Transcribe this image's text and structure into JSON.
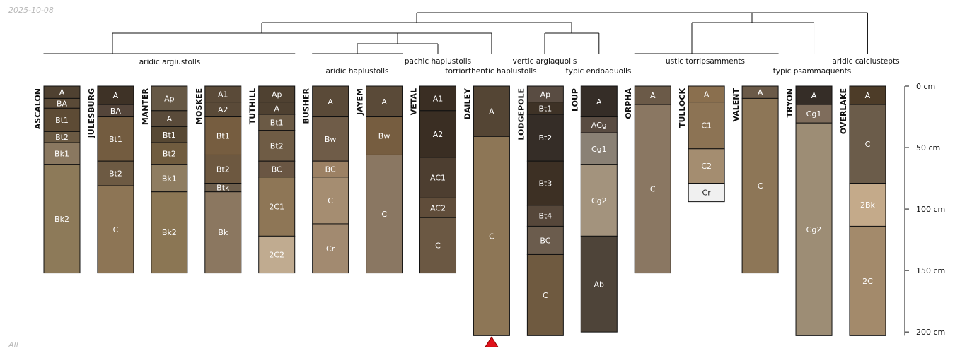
{
  "header": {
    "date": "2025-10-08"
  },
  "footer": {
    "label": "All"
  },
  "chart_data": {
    "type": "soil-profile-sketch",
    "depth_unit": "cm",
    "depth_ticks": [
      0,
      50,
      100,
      150,
      200
    ],
    "depth_tick_labels": [
      "0 cm",
      "50 cm",
      "100 cm",
      "150 cm",
      "200 cm"
    ],
    "depth_max": 203,
    "classes": [
      {
        "label": "aridic argiustolls",
        "members": [
          "ASCALON",
          "JULESBURG",
          "MANTER",
          "MOSKEE",
          "TUTHILL"
        ]
      },
      {
        "label": "aridic haplustolls",
        "members": [
          "BUSHER",
          "JAYEM"
        ]
      },
      {
        "label": "pachic haplustolls",
        "members": [
          "VETAL"
        ]
      },
      {
        "label": "torriorthentic haplustolls",
        "members": [
          "DAILEY"
        ]
      },
      {
        "label": "vertic argiaquolls",
        "members": [
          "LODGEPOLE"
        ]
      },
      {
        "label": "typic endoaquolls",
        "members": [
          "LOUP"
        ]
      },
      {
        "label": "ustic torripsamments",
        "members": [
          "ORPHA",
          "TULLOCK",
          "VALENT"
        ]
      },
      {
        "label": "typic psammaquents",
        "members": [
          "TRYON"
        ]
      },
      {
        "label": "aridic calciustepts",
        "members": [
          "OVERLAKE"
        ]
      }
    ],
    "truncated_profiles": [
      "DAILEY"
    ],
    "profiles": [
      {
        "name": "ASCALON",
        "horizons": [
          {
            "name": "A",
            "top": 0,
            "bottom": 10,
            "color": "#4f4131"
          },
          {
            "name": "BA",
            "top": 10,
            "bottom": 18,
            "color": "#5a4a37"
          },
          {
            "name": "Bt1",
            "top": 18,
            "bottom": 37,
            "color": "#5d4b35"
          },
          {
            "name": "Bt2",
            "top": 37,
            "bottom": 46,
            "color": "#6b5a43"
          },
          {
            "name": "Bk1",
            "top": 46,
            "bottom": 64,
            "color": "#8a7860"
          },
          {
            "name": "Bk2",
            "top": 64,
            "bottom": 152,
            "color": "#8d7a59"
          }
        ]
      },
      {
        "name": "JULESBURG",
        "horizons": [
          {
            "name": "A",
            "top": 0,
            "bottom": 15,
            "color": "#3e3226"
          },
          {
            "name": "BA",
            "top": 15,
            "bottom": 25,
            "color": "#54453a"
          },
          {
            "name": "Bt1",
            "top": 25,
            "bottom": 61,
            "color": "#735c40"
          },
          {
            "name": "Bt2",
            "top": 61,
            "bottom": 81,
            "color": "#6d5a43"
          },
          {
            "name": "C",
            "top": 81,
            "bottom": 152,
            "color": "#8d7555"
          }
        ]
      },
      {
        "name": "MANTER",
        "horizons": [
          {
            "name": "Ap",
            "top": 0,
            "bottom": 20,
            "color": "#665845"
          },
          {
            "name": "A",
            "top": 20,
            "bottom": 33,
            "color": "#5a4b3a"
          },
          {
            "name": "Bt1",
            "top": 33,
            "bottom": 46,
            "color": "#574833"
          },
          {
            "name": "Bt2",
            "top": 46,
            "bottom": 64,
            "color": "#705c3f"
          },
          {
            "name": "Bk1",
            "top": 64,
            "bottom": 86,
            "color": "#8f7d61"
          },
          {
            "name": "Bk2",
            "top": 86,
            "bottom": 152,
            "color": "#8b7654"
          }
        ]
      },
      {
        "name": "MOSKEE",
        "horizons": [
          {
            "name": "A1",
            "top": 0,
            "bottom": 13,
            "color": "#5a4a38"
          },
          {
            "name": "A2",
            "top": 13,
            "bottom": 25,
            "color": "#5a4a38"
          },
          {
            "name": "Bt1",
            "top": 25,
            "bottom": 56,
            "color": "#765d40"
          },
          {
            "name": "Bt2",
            "top": 56,
            "bottom": 79,
            "color": "#6d5840"
          },
          {
            "name": "Btk",
            "top": 79,
            "bottom": 86,
            "color": "#6d5e4c"
          },
          {
            "name": "Bk",
            "top": 86,
            "bottom": 152,
            "color": "#8b7760"
          }
        ]
      },
      {
        "name": "TUTHILL",
        "horizons": [
          {
            "name": "Ap",
            "top": 0,
            "bottom": 13,
            "color": "#4f4131"
          },
          {
            "name": "A",
            "top": 13,
            "bottom": 23,
            "color": "#4f4131"
          },
          {
            "name": "Bt1",
            "top": 23,
            "bottom": 36,
            "color": "#6b5a45"
          },
          {
            "name": "Bt2",
            "top": 36,
            "bottom": 61,
            "color": "#6f5c45"
          },
          {
            "name": "BC",
            "top": 61,
            "bottom": 74,
            "color": "#6a5643"
          },
          {
            "name": "2C1",
            "top": 74,
            "bottom": 122,
            "color": "#8e7656"
          },
          {
            "name": "2C2",
            "top": 122,
            "bottom": 152,
            "color": "#c0ab90"
          }
        ]
      },
      {
        "name": "BUSHER",
        "horizons": [
          {
            "name": "A",
            "top": 0,
            "bottom": 25,
            "color": "#5a4a38"
          },
          {
            "name": "Bw",
            "top": 25,
            "bottom": 61,
            "color": "#6f5c48"
          },
          {
            "name": "BC",
            "top": 61,
            "bottom": 74,
            "color": "#9c8164"
          },
          {
            "name": "C",
            "top": 74,
            "bottom": 112,
            "color": "#a58d71"
          },
          {
            "name": "Cr",
            "top": 112,
            "bottom": 152,
            "color": "#a28a70"
          }
        ]
      },
      {
        "name": "JAYEM",
        "horizons": [
          {
            "name": "A",
            "top": 0,
            "bottom": 25,
            "color": "#5a4a38"
          },
          {
            "name": "Bw",
            "top": 25,
            "bottom": 56,
            "color": "#765d40"
          },
          {
            "name": "C",
            "top": 56,
            "bottom": 152,
            "color": "#8a7762"
          }
        ]
      },
      {
        "name": "VETAL",
        "horizons": [
          {
            "name": "A1",
            "top": 0,
            "bottom": 20,
            "color": "#3a2e23"
          },
          {
            "name": "A2",
            "top": 20,
            "bottom": 58,
            "color": "#3a2e23"
          },
          {
            "name": "AC1",
            "top": 58,
            "bottom": 91,
            "color": "#4d3e30"
          },
          {
            "name": "AC2",
            "top": 91,
            "bottom": 107,
            "color": "#604d3a"
          },
          {
            "name": "C",
            "top": 107,
            "bottom": 152,
            "color": "#6b5843"
          }
        ]
      },
      {
        "name": "DAILEY",
        "horizons": [
          {
            "name": "A",
            "top": 0,
            "bottom": 41,
            "color": "#544534"
          },
          {
            "name": "C",
            "top": 41,
            "bottom": 203,
            "color": "#8d7656"
          }
        ]
      },
      {
        "name": "LODGEPOLE",
        "horizons": [
          {
            "name": "Ap",
            "top": 0,
            "bottom": 13,
            "color": "#594c42"
          },
          {
            "name": "Bt1",
            "top": 13,
            "bottom": 23,
            "color": "#3e3226"
          },
          {
            "name": "Bt2",
            "top": 23,
            "bottom": 61,
            "color": "#352d27"
          },
          {
            "name": "Bt3",
            "top": 61,
            "bottom": 97,
            "color": "#3d3024"
          },
          {
            "name": "Bt4",
            "top": 97,
            "bottom": 114,
            "color": "#56473a"
          },
          {
            "name": "BC",
            "top": 114,
            "bottom": 137,
            "color": "#6b5c4d"
          },
          {
            "name": "C",
            "top": 137,
            "bottom": 203,
            "color": "#6f5a40"
          }
        ]
      },
      {
        "name": "LOUP",
        "horizons": [
          {
            "name": "A",
            "top": 0,
            "bottom": 25,
            "color": "#352d27"
          },
          {
            "name": "ACg",
            "top": 25,
            "bottom": 38,
            "color": "#594c42"
          },
          {
            "name": "Cg1",
            "top": 38,
            "bottom": 64,
            "color": "#8a8175"
          },
          {
            "name": "Cg2",
            "top": 64,
            "bottom": 122,
            "color": "#a3937d"
          },
          {
            "name": "Ab",
            "top": 122,
            "bottom": 200,
            "color": "#4e4439"
          }
        ]
      },
      {
        "name": "ORPHA",
        "horizons": [
          {
            "name": "A",
            "top": 0,
            "bottom": 15,
            "color": "#6b5a48"
          },
          {
            "name": "C",
            "top": 15,
            "bottom": 152,
            "color": "#8a7762"
          }
        ]
      },
      {
        "name": "TULLOCK",
        "horizons": [
          {
            "name": "A",
            "top": 0,
            "bottom": 13,
            "color": "#8a6f4e"
          },
          {
            "name": "C1",
            "top": 13,
            "bottom": 51,
            "color": "#8c7354"
          },
          {
            "name": "C2",
            "top": 51,
            "bottom": 79,
            "color": "#a48d70"
          },
          {
            "name": "Cr",
            "top": 79,
            "bottom": 94,
            "color": "#f0f0f0"
          }
        ]
      },
      {
        "name": "VALENT",
        "horizons": [
          {
            "name": "A",
            "top": 0,
            "bottom": 10,
            "color": "#6b5a48"
          },
          {
            "name": "C",
            "top": 10,
            "bottom": 152,
            "color": "#8d7657"
          }
        ]
      },
      {
        "name": "TRYON",
        "horizons": [
          {
            "name": "A",
            "top": 0,
            "bottom": 15,
            "color": "#352d27"
          },
          {
            "name": "Cg1",
            "top": 15,
            "bottom": 30,
            "color": "#7f6d5c"
          },
          {
            "name": "Cg2",
            "top": 30,
            "bottom": 203,
            "color": "#9d8d75"
          }
        ]
      },
      {
        "name": "OVERLAKE",
        "horizons": [
          {
            "name": "A",
            "top": 0,
            "bottom": 15,
            "color": "#4d3c28"
          },
          {
            "name": "C",
            "top": 15,
            "bottom": 79,
            "color": "#6b5c4a"
          },
          {
            "name": "2Bk",
            "top": 79,
            "bottom": 114,
            "color": "#c4aa8a"
          },
          {
            "name": "2C",
            "top": 114,
            "bottom": 203,
            "color": "#a38a6b"
          }
        ]
      }
    ]
  }
}
